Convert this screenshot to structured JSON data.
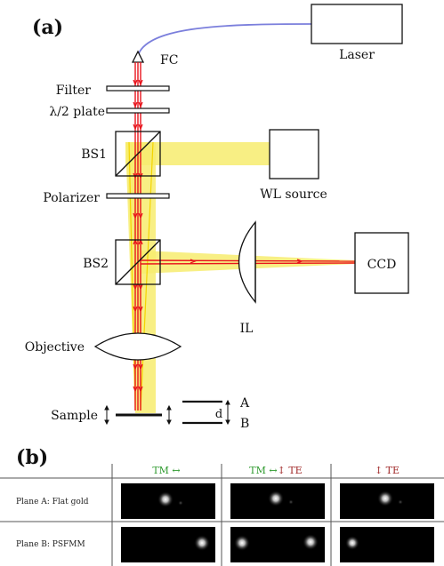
{
  "panel_a": {
    "label": "(a)",
    "components": {
      "laser": "Laser",
      "fc": "FC",
      "filter": "Filter",
      "half_wave_plate": "λ/2 plate",
      "bs1": "BS1",
      "wl_source": "WL source",
      "polarizer": "Polarizer",
      "bs2": "BS2",
      "ccd": "CCD",
      "il": "IL",
      "objective": "Objective",
      "sample": "Sample",
      "plane_a": "A",
      "plane_b": "B",
      "distance": "d"
    }
  },
  "panel_b": {
    "label": "(b)",
    "columns": [
      {
        "prefix": "TM ↔",
        "suffix": ""
      },
      {
        "prefix": "TM ↔",
        "suffix": "↕ TE"
      },
      {
        "prefix": "",
        "suffix": "↕ TE"
      }
    ],
    "rows": [
      "Plane A: Flat gold",
      "Plane B: PSFMM"
    ]
  },
  "colors": {
    "laser_beam": "#e8141c",
    "white_light": "#f7ec6e",
    "fiber": "#7b7fdc",
    "tm_label": "#2f9a2f",
    "te_label": "#a02828"
  }
}
